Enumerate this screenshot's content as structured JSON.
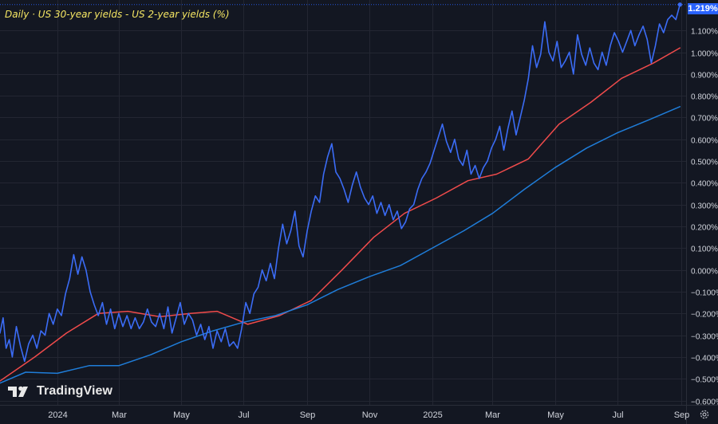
{
  "title": "Daily · US 30-year yields - US 2-year yields (%)",
  "brand": {
    "text": "TradingView",
    "logo_icon": "tradingview-logo-icon"
  },
  "settings_icon": "gear-icon",
  "last_value_label": "1.219%",
  "colors": {
    "background": "#131722",
    "grid": "#232632",
    "price_line": "#3b6cf6",
    "ma_red": "#ef4b4b",
    "ma_blue": "#1f7dd9",
    "title": "#f5e663",
    "axis_text": "#d1d4dc",
    "last_label_bg": "#2962ff"
  },
  "chart_data": {
    "type": "line",
    "title": "Daily · US 30-year yields - US 2-year yields (%)",
    "y_unit": "%",
    "ylim": [
      -0.62,
      1.24
    ],
    "xlim": [
      "2023-11-06",
      "2025-09-06"
    ],
    "y_ticks": [
      "1.100%",
      "1.000%",
      "0.900%",
      "0.800%",
      "0.700%",
      "0.600%",
      "0.500%",
      "0.400%",
      "0.300%",
      "0.200%",
      "0.100%",
      "0.000%",
      "−0.100%",
      "−0.200%",
      "−0.300%",
      "−0.400%",
      "−0.500%",
      "−0.600%"
    ],
    "y_tick_values": [
      1.1,
      1.0,
      0.9,
      0.8,
      0.7,
      0.6,
      0.5,
      0.4,
      0.3,
      0.2,
      0.1,
      0.0,
      -0.1,
      -0.2,
      -0.3,
      -0.4,
      -0.5,
      -0.6
    ],
    "x_ticks": [
      "2024",
      "Mar",
      "May",
      "Jul",
      "Sep",
      "Nov",
      "2025",
      "Mar",
      "May",
      "Jul",
      "Sep"
    ],
    "x_tick_dates": [
      "2024-01-01",
      "2024-03-01",
      "2024-05-01",
      "2024-07-01",
      "2024-09-01",
      "2024-11-01",
      "2025-01-01",
      "2025-03-01",
      "2025-05-01",
      "2025-07-01",
      "2025-09-01"
    ],
    "grid": true,
    "last_value": 1.219,
    "series": [
      {
        "color": "#3b6cf6",
        "points": [
          [
            "2023-11-06",
            -0.29
          ],
          [
            "2023-11-09",
            -0.22
          ],
          [
            "2023-11-12",
            -0.36
          ],
          [
            "2023-11-15",
            -0.32
          ],
          [
            "2023-11-18",
            -0.4
          ],
          [
            "2023-11-22",
            -0.26
          ],
          [
            "2023-11-26",
            -0.35
          ],
          [
            "2023-11-30",
            -0.42
          ],
          [
            "2023-12-04",
            -0.34
          ],
          [
            "2023-12-08",
            -0.3
          ],
          [
            "2023-12-12",
            -0.36
          ],
          [
            "2023-12-16",
            -0.28
          ],
          [
            "2023-12-20",
            -0.3
          ],
          [
            "2023-12-24",
            -0.2
          ],
          [
            "2023-12-28",
            -0.25
          ],
          [
            "2024-01-01",
            -0.18
          ],
          [
            "2024-01-05",
            -0.21
          ],
          [
            "2024-01-09",
            -0.11
          ],
          [
            "2024-01-13",
            -0.04
          ],
          [
            "2024-01-17",
            0.07
          ],
          [
            "2024-01-21",
            -0.02
          ],
          [
            "2024-01-25",
            0.06
          ],
          [
            "2024-01-29",
            0.0
          ],
          [
            "2024-02-02",
            -0.1
          ],
          [
            "2024-02-06",
            -0.16
          ],
          [
            "2024-02-10",
            -0.21
          ],
          [
            "2024-02-14",
            -0.15
          ],
          [
            "2024-02-18",
            -0.25
          ],
          [
            "2024-02-22",
            -0.18
          ],
          [
            "2024-02-26",
            -0.27
          ],
          [
            "2024-03-01",
            -0.2
          ],
          [
            "2024-03-05",
            -0.26
          ],
          [
            "2024-03-09",
            -0.21
          ],
          [
            "2024-03-13",
            -0.27
          ],
          [
            "2024-03-17",
            -0.22
          ],
          [
            "2024-03-21",
            -0.27
          ],
          [
            "2024-03-25",
            -0.24
          ],
          [
            "2024-03-29",
            -0.18
          ],
          [
            "2024-04-02",
            -0.24
          ],
          [
            "2024-04-06",
            -0.26
          ],
          [
            "2024-04-10",
            -0.2
          ],
          [
            "2024-04-14",
            -0.27
          ],
          [
            "2024-04-18",
            -0.17
          ],
          [
            "2024-04-22",
            -0.29
          ],
          [
            "2024-04-26",
            -0.22
          ],
          [
            "2024-04-30",
            -0.15
          ],
          [
            "2024-05-04",
            -0.25
          ],
          [
            "2024-05-08",
            -0.2
          ],
          [
            "2024-05-12",
            -0.23
          ],
          [
            "2024-05-16",
            -0.3
          ],
          [
            "2024-05-20",
            -0.25
          ],
          [
            "2024-05-24",
            -0.32
          ],
          [
            "2024-05-28",
            -0.26
          ],
          [
            "2024-06-01",
            -0.36
          ],
          [
            "2024-06-05",
            -0.28
          ],
          [
            "2024-06-09",
            -0.33
          ],
          [
            "2024-06-13",
            -0.27
          ],
          [
            "2024-06-17",
            -0.35
          ],
          [
            "2024-06-21",
            -0.33
          ],
          [
            "2024-06-25",
            -0.36
          ],
          [
            "2024-06-29",
            -0.27
          ],
          [
            "2024-07-03",
            -0.15
          ],
          [
            "2024-07-07",
            -0.2
          ],
          [
            "2024-07-11",
            -0.11
          ],
          [
            "2024-07-15",
            -0.08
          ],
          [
            "2024-07-19",
            0.0
          ],
          [
            "2024-07-23",
            -0.05
          ],
          [
            "2024-07-27",
            0.03
          ],
          [
            "2024-07-31",
            -0.04
          ],
          [
            "2024-08-04",
            0.1
          ],
          [
            "2024-08-08",
            0.21
          ],
          [
            "2024-08-12",
            0.12
          ],
          [
            "2024-08-16",
            0.18
          ],
          [
            "2024-08-20",
            0.27
          ],
          [
            "2024-08-24",
            0.11
          ],
          [
            "2024-08-28",
            0.06
          ],
          [
            "2024-09-01",
            0.18
          ],
          [
            "2024-09-05",
            0.27
          ],
          [
            "2024-09-09",
            0.34
          ],
          [
            "2024-09-13",
            0.31
          ],
          [
            "2024-09-17",
            0.44
          ],
          [
            "2024-09-21",
            0.52
          ],
          [
            "2024-09-25",
            0.58
          ],
          [
            "2024-09-29",
            0.45
          ],
          [
            "2024-10-03",
            0.42
          ],
          [
            "2024-10-07",
            0.37
          ],
          [
            "2024-10-11",
            0.31
          ],
          [
            "2024-10-15",
            0.39
          ],
          [
            "2024-10-19",
            0.45
          ],
          [
            "2024-10-23",
            0.38
          ],
          [
            "2024-10-27",
            0.33
          ],
          [
            "2024-10-31",
            0.3
          ],
          [
            "2024-11-04",
            0.34
          ],
          [
            "2024-11-08",
            0.26
          ],
          [
            "2024-11-12",
            0.31
          ],
          [
            "2024-11-16",
            0.25
          ],
          [
            "2024-11-20",
            0.3
          ],
          [
            "2024-11-24",
            0.23
          ],
          [
            "2024-11-28",
            0.27
          ],
          [
            "2024-12-02",
            0.19
          ],
          [
            "2024-12-06",
            0.22
          ],
          [
            "2024-12-10",
            0.28
          ],
          [
            "2024-12-14",
            0.3
          ],
          [
            "2024-12-18",
            0.37
          ],
          [
            "2024-12-22",
            0.42
          ],
          [
            "2024-12-26",
            0.45
          ],
          [
            "2024-12-30",
            0.49
          ],
          [
            "2025-01-03",
            0.55
          ],
          [
            "2025-01-07",
            0.61
          ],
          [
            "2025-01-11",
            0.67
          ],
          [
            "2025-01-15",
            0.59
          ],
          [
            "2025-01-19",
            0.54
          ],
          [
            "2025-01-23",
            0.6
          ],
          [
            "2025-01-27",
            0.51
          ],
          [
            "2025-01-31",
            0.48
          ],
          [
            "2025-02-04",
            0.55
          ],
          [
            "2025-02-08",
            0.44
          ],
          [
            "2025-02-12",
            0.48
          ],
          [
            "2025-02-16",
            0.42
          ],
          [
            "2025-02-20",
            0.47
          ],
          [
            "2025-02-24",
            0.5
          ],
          [
            "2025-02-28",
            0.56
          ],
          [
            "2025-03-04",
            0.6
          ],
          [
            "2025-03-08",
            0.66
          ],
          [
            "2025-03-12",
            0.55
          ],
          [
            "2025-03-16",
            0.65
          ],
          [
            "2025-03-20",
            0.73
          ],
          [
            "2025-03-24",
            0.62
          ],
          [
            "2025-03-28",
            0.7
          ],
          [
            "2025-04-01",
            0.78
          ],
          [
            "2025-04-05",
            0.88
          ],
          [
            "2025-04-09",
            1.03
          ],
          [
            "2025-04-13",
            0.93
          ],
          [
            "2025-04-17",
            0.99
          ],
          [
            "2025-04-21",
            1.14
          ],
          [
            "2025-04-25",
            1.0
          ],
          [
            "2025-04-29",
            0.96
          ],
          [
            "2025-05-03",
            1.05
          ],
          [
            "2025-05-07",
            0.93
          ],
          [
            "2025-05-11",
            0.96
          ],
          [
            "2025-05-15",
            1.0
          ],
          [
            "2025-05-19",
            0.9
          ],
          [
            "2025-05-23",
            1.08
          ],
          [
            "2025-05-27",
            0.99
          ],
          [
            "2025-05-31",
            0.94
          ],
          [
            "2025-06-04",
            1.02
          ],
          [
            "2025-06-08",
            0.95
          ],
          [
            "2025-06-12",
            0.92
          ],
          [
            "2025-06-16",
            1.0
          ],
          [
            "2025-06-20",
            0.94
          ],
          [
            "2025-06-24",
            1.03
          ],
          [
            "2025-06-28",
            1.09
          ],
          [
            "2025-07-02",
            1.05
          ],
          [
            "2025-07-06",
            1.0
          ],
          [
            "2025-07-10",
            1.05
          ],
          [
            "2025-07-14",
            1.1
          ],
          [
            "2025-07-18",
            1.03
          ],
          [
            "2025-07-22",
            1.08
          ],
          [
            "2025-07-26",
            1.12
          ],
          [
            "2025-07-30",
            1.06
          ],
          [
            "2025-08-03",
            0.95
          ],
          [
            "2025-08-07",
            1.03
          ],
          [
            "2025-08-11",
            1.13
          ],
          [
            "2025-08-15",
            1.09
          ],
          [
            "2025-08-19",
            1.15
          ],
          [
            "2025-08-23",
            1.17
          ],
          [
            "2025-08-27",
            1.15
          ],
          [
            "2025-08-31",
            1.219
          ]
        ]
      },
      {
        "color": "#ef4b4b",
        "points": [
          [
            "2023-11-06",
            -0.51
          ],
          [
            "2023-12-10",
            -0.4
          ],
          [
            "2024-01-10",
            -0.29
          ],
          [
            "2024-02-10",
            -0.2
          ],
          [
            "2024-03-10",
            -0.19
          ],
          [
            "2024-04-10",
            -0.215
          ],
          [
            "2024-05-10",
            -0.2
          ],
          [
            "2024-06-05",
            -0.19
          ],
          [
            "2024-07-05",
            -0.25
          ],
          [
            "2024-08-05",
            -0.21
          ],
          [
            "2024-09-05",
            -0.14
          ],
          [
            "2024-10-05",
            0.0
          ],
          [
            "2024-11-05",
            0.15
          ],
          [
            "2024-12-05",
            0.26
          ],
          [
            "2025-01-05",
            0.33
          ],
          [
            "2025-02-05",
            0.41
          ],
          [
            "2025-03-05",
            0.44
          ],
          [
            "2025-04-05",
            0.51
          ],
          [
            "2025-05-05",
            0.67
          ],
          [
            "2025-06-05",
            0.77
          ],
          [
            "2025-07-05",
            0.88
          ],
          [
            "2025-08-05",
            0.95
          ],
          [
            "2025-08-31",
            1.02
          ]
        ]
      },
      {
        "color": "#1f7dd9",
        "points": [
          [
            "2023-11-06",
            -0.52
          ],
          [
            "2023-12-01",
            -0.47
          ],
          [
            "2024-01-01",
            -0.475
          ],
          [
            "2024-02-01",
            -0.44
          ],
          [
            "2024-03-01",
            -0.44
          ],
          [
            "2024-04-01",
            -0.39
          ],
          [
            "2024-05-01",
            -0.33
          ],
          [
            "2024-06-01",
            -0.28
          ],
          [
            "2024-07-01",
            -0.24
          ],
          [
            "2024-08-01",
            -0.21
          ],
          [
            "2024-09-01",
            -0.16
          ],
          [
            "2024-10-01",
            -0.09
          ],
          [
            "2024-11-01",
            -0.03
          ],
          [
            "2024-12-01",
            0.02
          ],
          [
            "2025-01-01",
            0.1
          ],
          [
            "2025-02-01",
            0.18
          ],
          [
            "2025-03-01",
            0.26
          ],
          [
            "2025-04-01",
            0.37
          ],
          [
            "2025-05-01",
            0.47
          ],
          [
            "2025-06-01",
            0.56
          ],
          [
            "2025-07-01",
            0.63
          ],
          [
            "2025-08-01",
            0.69
          ],
          [
            "2025-08-31",
            0.75
          ]
        ]
      }
    ]
  }
}
